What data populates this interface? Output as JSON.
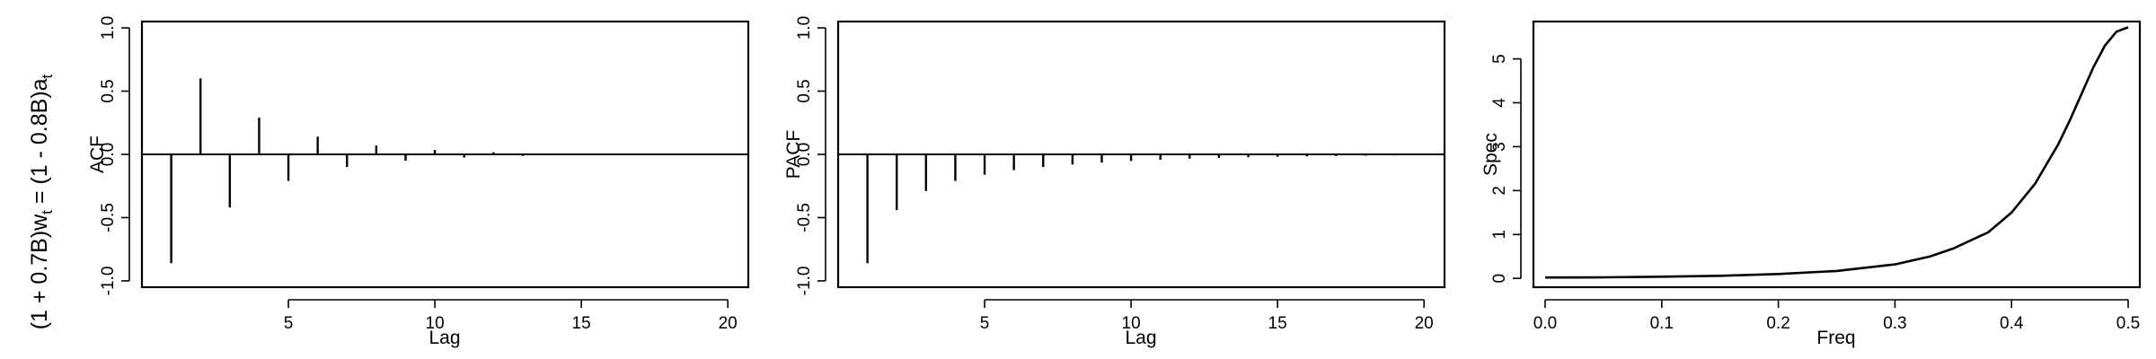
{
  "model_title": {
    "prefix": "(1 + 0.7B)w",
    "prefix_sub": "t",
    "mid": " = (1 - 0.8B)a",
    "mid_sub": "t"
  },
  "chart_data": [
    {
      "type": "bar",
      "title": "",
      "xlabel": "Lag",
      "ylabel": "ACF",
      "xlim": [
        0,
        20.7
      ],
      "ylim": [
        -1.05,
        1.05
      ],
      "xticks": [
        5,
        10,
        15,
        20
      ],
      "yticks": [
        -1.0,
        -0.5,
        0.0,
        0.5,
        1.0
      ],
      "ytick_labels": [
        "-1.0",
        "-0.5",
        "0.0",
        "0.5",
        "1.0"
      ],
      "x": [
        1,
        2,
        3,
        4,
        5,
        6,
        7,
        8,
        9,
        10,
        11,
        12,
        13,
        14,
        15,
        16,
        17,
        18,
        19,
        20
      ],
      "values": [
        -0.86,
        0.6,
        -0.42,
        0.29,
        -0.21,
        0.14,
        -0.1,
        0.07,
        -0.05,
        0.035,
        -0.025,
        0.017,
        -0.012,
        0.008,
        -0.006,
        0.004,
        -0.003,
        0.002,
        -0.0015,
        0.001
      ],
      "grid": false
    },
    {
      "type": "bar",
      "title": "",
      "xlabel": "Lag",
      "ylabel": "PACF",
      "xlim": [
        0,
        20.7
      ],
      "ylim": [
        -1.05,
        1.05
      ],
      "xticks": [
        5,
        10,
        15,
        20
      ],
      "yticks": [
        -1.0,
        -0.5,
        0.0,
        0.5,
        1.0
      ],
      "ytick_labels": [
        "-1.0",
        "-0.5",
        "0.0",
        "0.5",
        "1.0"
      ],
      "x": [
        1,
        2,
        3,
        4,
        5,
        6,
        7,
        8,
        9,
        10,
        11,
        12,
        13,
        14,
        15,
        16,
        17,
        18,
        19,
        20
      ],
      "values": [
        -0.86,
        -0.44,
        -0.29,
        -0.21,
        -0.16,
        -0.125,
        -0.1,
        -0.08,
        -0.065,
        -0.052,
        -0.042,
        -0.034,
        -0.028,
        -0.023,
        -0.019,
        -0.016,
        -0.013,
        -0.011,
        -0.009,
        -0.007
      ],
      "grid": false
    },
    {
      "type": "line",
      "title": "",
      "xlabel": "Freq",
      "ylabel": "Spec",
      "xlim": [
        -0.01,
        0.51
      ],
      "ylim": [
        -0.2,
        5.85
      ],
      "xticks": [
        0.0,
        0.1,
        0.2,
        0.3,
        0.4,
        0.5
      ],
      "xtick_labels": [
        "0.0",
        "0.1",
        "0.2",
        "0.3",
        "0.4",
        "0.5"
      ],
      "yticks": [
        0,
        1,
        2,
        3,
        4,
        5
      ],
      "ytick_labels": [
        "0",
        "1",
        "2",
        "3",
        "4",
        "5"
      ],
      "x": [
        0.0,
        0.05,
        0.1,
        0.15,
        0.2,
        0.25,
        0.3,
        0.33,
        0.35,
        0.38,
        0.4,
        0.42,
        0.44,
        0.45,
        0.46,
        0.47,
        0.48,
        0.49,
        0.5
      ],
      "values": [
        0.02,
        0.025,
        0.04,
        0.06,
        0.1,
        0.17,
        0.32,
        0.5,
        0.68,
        1.05,
        1.5,
        2.15,
        3.05,
        3.6,
        4.2,
        4.8,
        5.3,
        5.62,
        5.72
      ],
      "grid": false
    }
  ]
}
